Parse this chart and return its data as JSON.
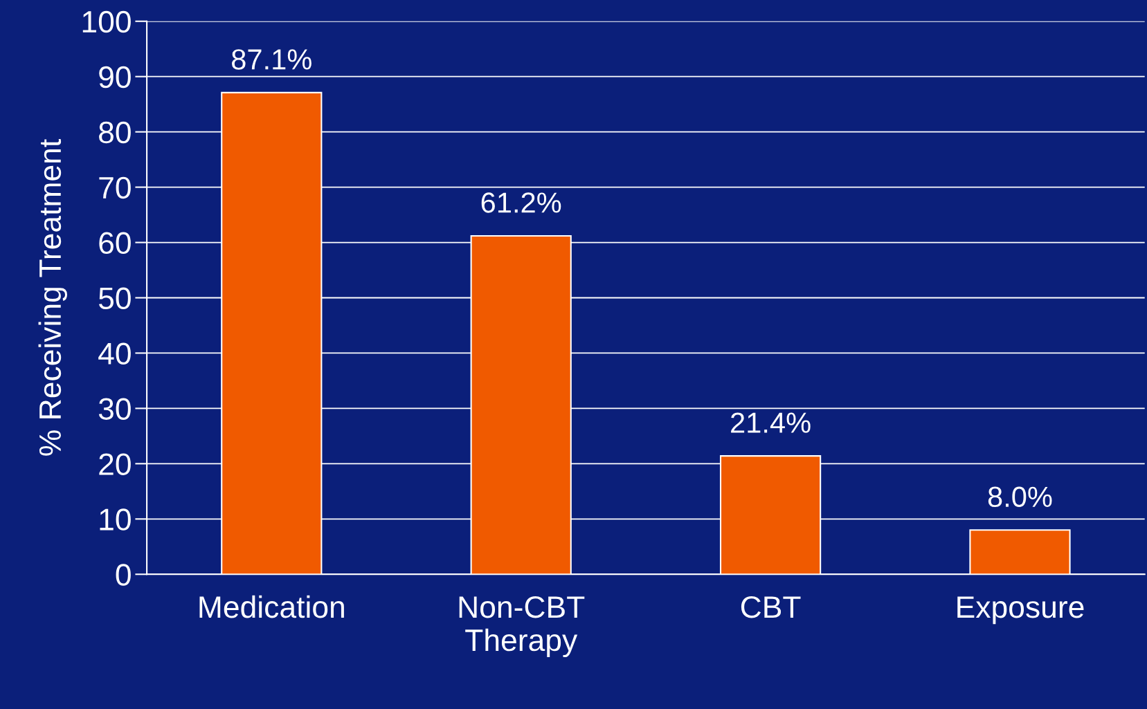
{
  "chart_data": {
    "type": "bar",
    "ylabel": "% Receiving Treatment",
    "categories": [
      "Medication",
      "Non-CBT\nTherapy",
      "CBT",
      "Exposure"
    ],
    "values": [
      87.1,
      61.2,
      21.4,
      8.0
    ],
    "value_labels": [
      "87.1%",
      "61.2%",
      "21.4%",
      "8.0%"
    ],
    "color": "#f05a00",
    "ylim": [
      0,
      100
    ],
    "yticks": [
      0,
      10,
      20,
      30,
      40,
      50,
      60,
      70,
      80,
      90,
      100
    ],
    "grid": "y",
    "legend": false
  }
}
